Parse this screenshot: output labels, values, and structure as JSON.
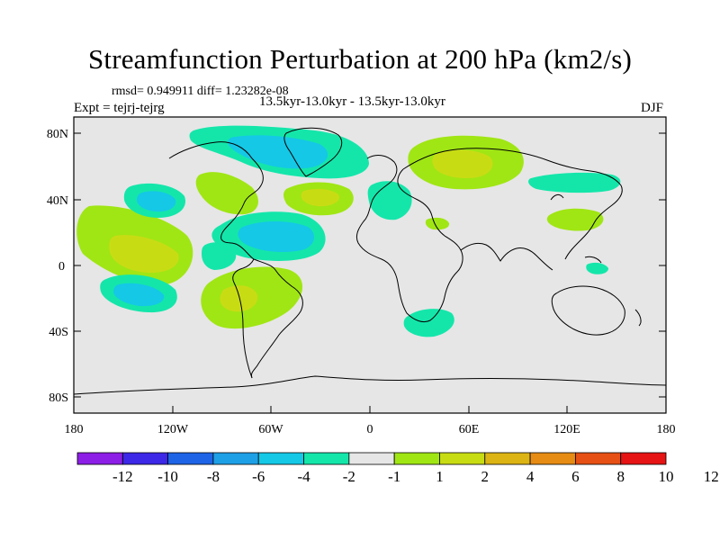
{
  "title": "Streamfunction Perturbation at 200 hPa (km2/s)",
  "stats": "rmsd= 0.949911 diff= 1.23282e-08",
  "subtitle": "13.5kyr-13.0kyr - 13.5kyr-13.0kyr",
  "expt": "Expt = tejrj-tejrg",
  "season": "DJF",
  "lat_labels": [
    "80N",
    "40N",
    "0",
    "40S",
    "80S"
  ],
  "lon_labels": [
    "180",
    "120W",
    "60W",
    "0",
    "60E",
    "120E",
    "180"
  ],
  "colorbar": {
    "colors": [
      "#8c1ee6",
      "#3c28e6",
      "#1e64e6",
      "#1ea0e6",
      "#14c8e6",
      "#14e6aa",
      "#e6e6e6",
      "#a0e614",
      "#c8dc14",
      "#dcb414",
      "#e68c14",
      "#e65014",
      "#e61414"
    ],
    "labels": [
      "-12",
      "-10",
      "-8",
      "-6",
      "-4",
      "-2",
      "-1",
      "1",
      "2",
      "4",
      "6",
      "8",
      "10",
      "12"
    ]
  },
  "colors": {
    "ocean_land_bg": "#e6e6e6",
    "pos1": "#a0e614",
    "pos2": "#c8dc14",
    "neg1": "#14e6aa",
    "neg2": "#14c8e6",
    "neg3": "#1ea0e6"
  }
}
